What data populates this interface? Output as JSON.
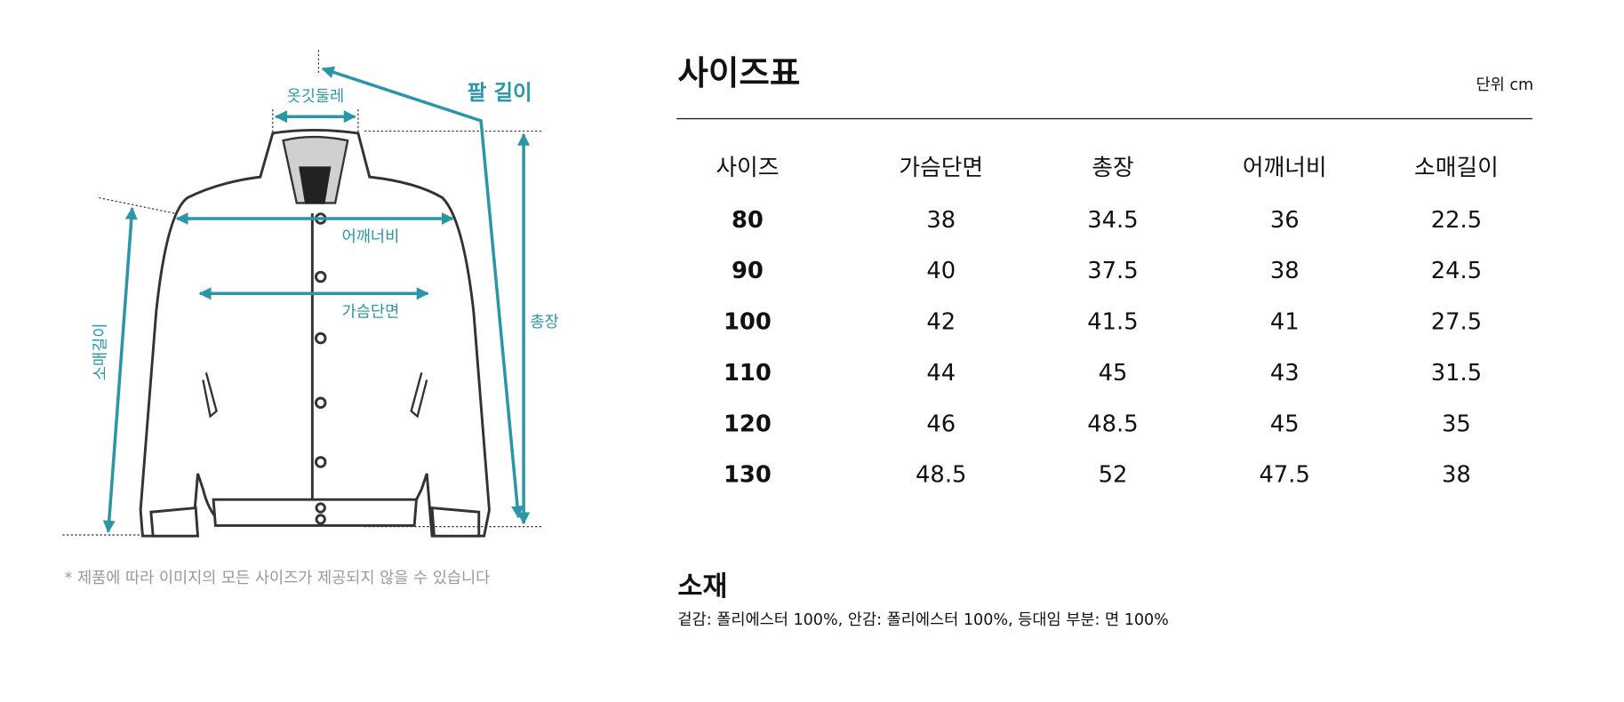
{
  "diagram": {
    "labels": {
      "collar": "옷깃둘레",
      "arm": "팔 길이",
      "shoulder": "어깨너비",
      "chest": "가슴단면",
      "length": "총장",
      "sleeve": "소매길이"
    },
    "note": "* 제품에 따라 이미지의 모든 사이즈가 제공되지 않을 수 있습니다"
  },
  "size_table": {
    "title": "사이즈표",
    "unit": "단위 cm",
    "columns": [
      "사이즈",
      "가슴단면",
      "총장",
      "어깨너비",
      "소매길이"
    ],
    "rows": [
      [
        "80",
        "38",
        "34.5",
        "36",
        "22.5"
      ],
      [
        "90",
        "40",
        "37.5",
        "38",
        "24.5"
      ],
      [
        "100",
        "42",
        "41.5",
        "41",
        "27.5"
      ],
      [
        "110",
        "44",
        "45",
        "43",
        "31.5"
      ],
      [
        "120",
        "46",
        "48.5",
        "45",
        "35"
      ],
      [
        "130",
        "48.5",
        "52",
        "47.5",
        "38"
      ]
    ]
  },
  "material": {
    "title": "소재",
    "text": "겉감: 폴리에스터 100%, 안감: 폴리에스터 100%, 등대임 부분: 면 100%"
  }
}
